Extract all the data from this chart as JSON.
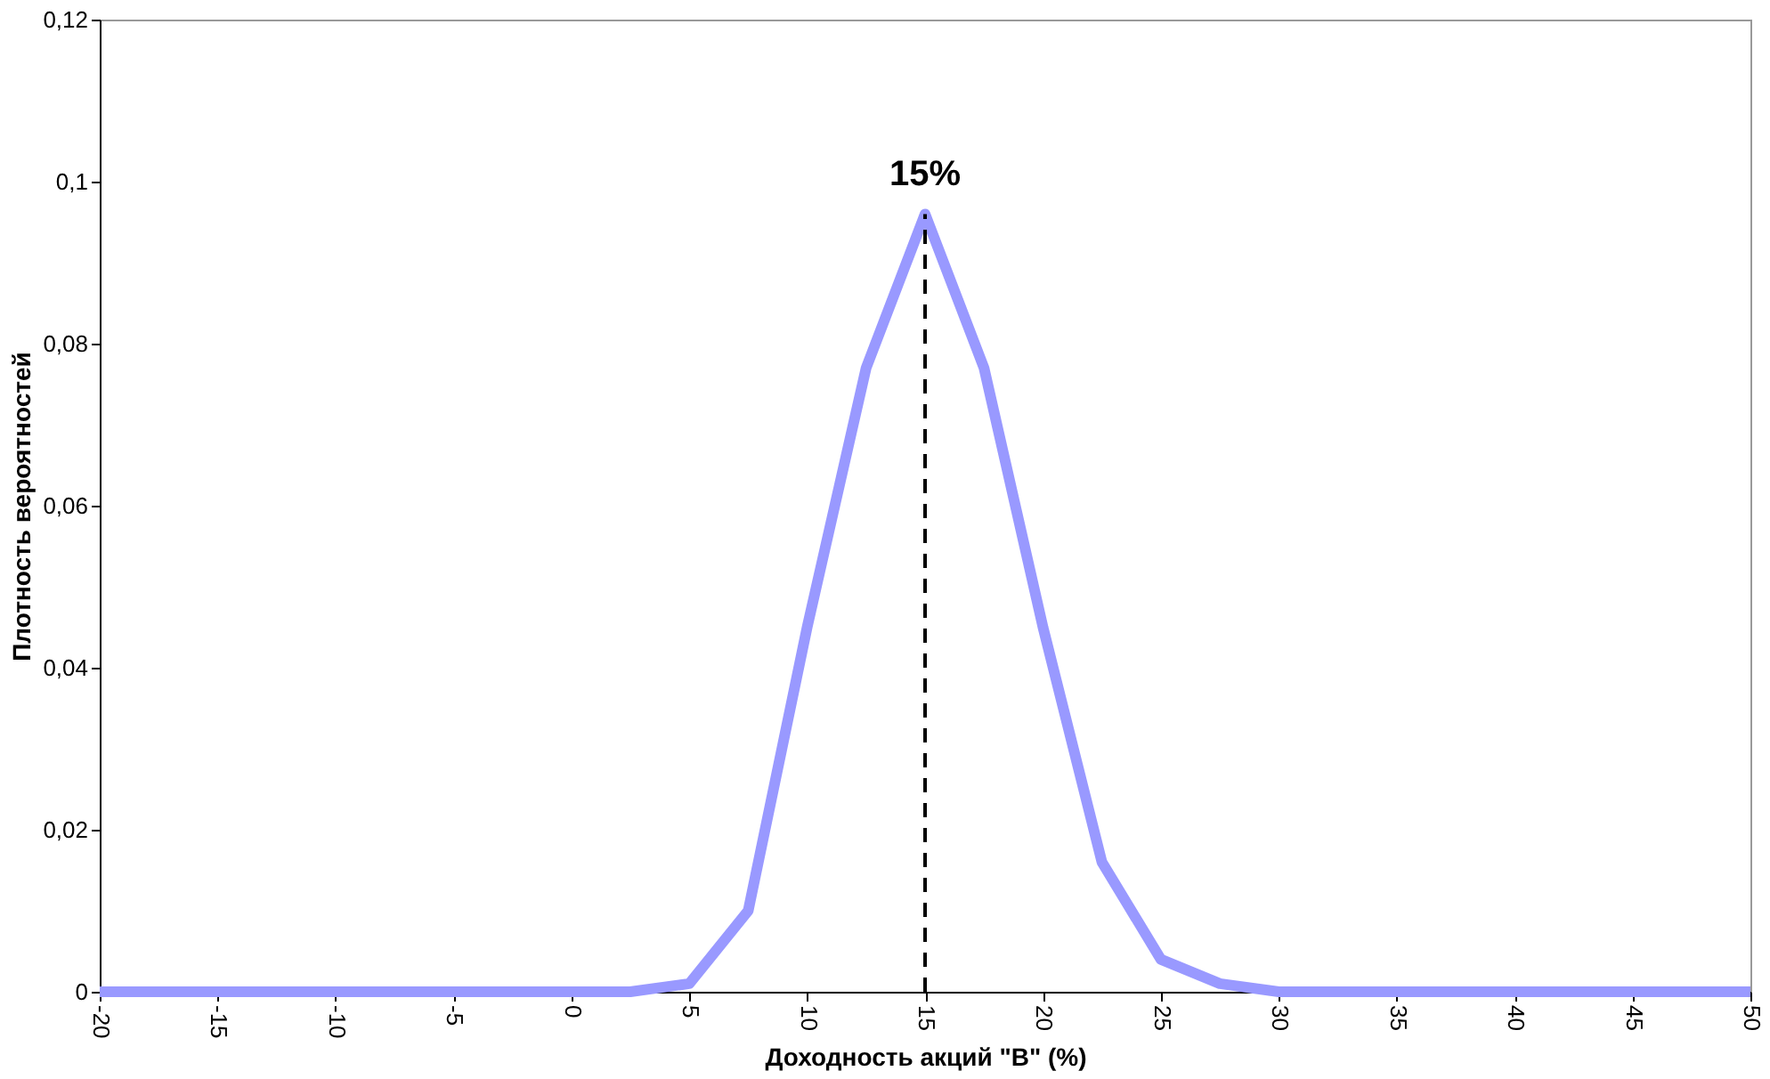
{
  "chart_data": {
    "type": "line",
    "xlabel": "Доходность акций \"В\" (%)",
    "ylabel": "Плотность вероятностей",
    "x": [
      -20,
      -17.5,
      -15,
      -12.5,
      -10,
      -7.5,
      -5,
      -2.5,
      0,
      2.5,
      5,
      7.5,
      10,
      12.5,
      15,
      17.5,
      20,
      22.5,
      25,
      27.5,
      30,
      32.5,
      35,
      37.5,
      40,
      42.5,
      45,
      47.5,
      50
    ],
    "series": [
      {
        "color": "#9999ff",
        "values": [
          0,
          0,
          0,
          0,
          0,
          0,
          0,
          0,
          0,
          0,
          0.001,
          0.01,
          0.045,
          0.077,
          0.096,
          0.077,
          0.045,
          0.016,
          0.004,
          0.001,
          0,
          0,
          0,
          0,
          0,
          0,
          0,
          0,
          0
        ]
      }
    ],
    "xlim": [
      -20,
      50
    ],
    "xticks": [
      -20,
      -15,
      -10,
      -5,
      0,
      5,
      10,
      15,
      20,
      25,
      30,
      35,
      40,
      45,
      50
    ],
    "ylim": [
      0,
      0.12
    ],
    "yticks": [
      0,
      {
        "value": 0.02,
        "label": "0,02"
      },
      {
        "value": 0.04,
        "label": "0,04"
      },
      {
        "value": 0.06,
        "label": "0,06"
      },
      {
        "value": 0.08,
        "label": "0,08"
      },
      {
        "value": 0.1,
        "label": "0,1"
      },
      {
        "value": 0.12,
        "label": "0,12"
      }
    ],
    "annotations": [
      {
        "text": "15%",
        "x": 15,
        "y": 0.096
      }
    ],
    "ref_lines": [
      {
        "axis": "x",
        "value": 15,
        "line_style": "dashed",
        "color": "#000000"
      }
    ],
    "grid": false,
    "legend": false,
    "marker": "none",
    "line_style": "solid"
  }
}
